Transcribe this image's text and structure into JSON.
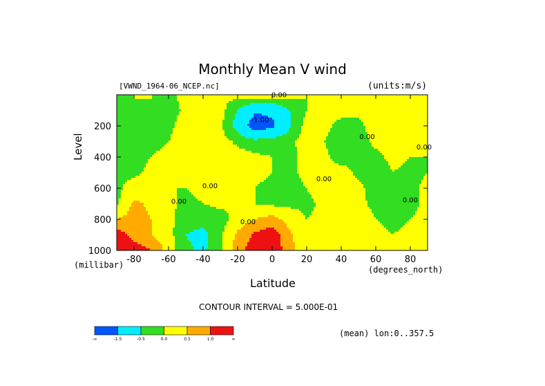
{
  "title": "Monthly Mean V wind",
  "file_label": "[VWND_1964-06_NCEP.nc]",
  "units_label": "(units:m/s)",
  "y_axis": {
    "label": "Level",
    "unit": "(millibar)",
    "ticks": [
      "200",
      "400",
      "600",
      "800",
      "1000"
    ]
  },
  "x_axis": {
    "label": "Latitude",
    "unit": "(degrees_north)",
    "ticks": [
      "-80",
      "-60",
      "-40",
      "-20",
      "0",
      "20",
      "40",
      "60",
      "80"
    ]
  },
  "contour_interval": "CONTOUR INTERVAL = 5.000E-01",
  "mean_label": "(mean) lon:0..357.5",
  "contour_labels": [
    "0.00",
    "-1.00",
    "0.00",
    "0.00",
    "0.00",
    "0.00",
    "0.00",
    "0.00",
    "0.00"
  ],
  "legend": {
    "colors": [
      "#0055ff",
      "#00eeff",
      "#33dd22",
      "#ffff00",
      "#ffaa00",
      "#ee1111"
    ],
    "labels": [
      "-∞",
      "-1.5",
      "-0.5",
      "0.0",
      "0.5",
      "1.0",
      "∞"
    ]
  },
  "chart_data": {
    "type": "heatmap",
    "title": "Monthly Mean V wind",
    "xlabel": "Latitude",
    "ylabel": "Level",
    "x_unit": "degrees_north",
    "y_unit": "millibar",
    "units": "m/s",
    "xlim": [
      -90,
      90
    ],
    "ylim": [
      1000,
      0
    ],
    "y_scale": "linear, inverted",
    "contour_interval": 0.5,
    "levels": [
      -1.5,
      -0.5,
      0.0,
      0.5,
      1.0
    ],
    "level_colors": [
      "#0055ff",
      "#00eeff",
      "#33dd22",
      "#ffff00",
      "#ffaa00",
      "#ee1111"
    ],
    "lat": [
      -90,
      -80,
      -70,
      -60,
      -50,
      -40,
      -30,
      -20,
      -10,
      0,
      10,
      20,
      30,
      40,
      50,
      60,
      70,
      80,
      90
    ],
    "lev": [
      25,
      100,
      200,
      300,
      400,
      500,
      600,
      700,
      800,
      900,
      1000
    ],
    "values": [
      [
        -0.1,
        0.0,
        0.0,
        -0.1,
        0.1,
        0.1,
        0.1,
        0.0,
        0.0,
        0.0,
        0.0,
        0.0,
        0.1,
        0.1,
        0.1,
        0.1,
        0.1,
        0.1,
        0.0
      ],
      [
        -0.2,
        -0.2,
        -0.3,
        -0.2,
        0.1,
        0.2,
        0.2,
        -0.5,
        -1.4,
        -1.3,
        -0.5,
        0.0,
        0.1,
        0.1,
        0.1,
        0.2,
        0.2,
        0.2,
        0.1
      ],
      [
        -0.3,
        -0.4,
        -0.3,
        -0.1,
        0.2,
        0.3,
        0.1,
        -0.8,
        -2.0,
        -1.7,
        -0.6,
        0.2,
        0.1,
        -0.1,
        -0.1,
        0.2,
        0.2,
        0.1,
        0.1
      ],
      [
        -0.2,
        -0.1,
        -0.1,
        0.0,
        0.2,
        0.2,
        0.2,
        -0.1,
        -0.3,
        -0.2,
        -0.1,
        0.2,
        0.0,
        -0.2,
        -0.2,
        0.1,
        0.1,
        0.1,
        0.1
      ],
      [
        -0.2,
        -0.1,
        0.0,
        0.1,
        0.1,
        0.2,
        0.2,
        0.2,
        0.1,
        0.0,
        -0.1,
        0.1,
        0.1,
        -0.2,
        -0.1,
        -0.1,
        0.1,
        0.0,
        0.0
      ],
      [
        -0.1,
        -0.1,
        0.1,
        0.0,
        0.1,
        0.1,
        0.2,
        0.1,
        0.1,
        0.0,
        -0.1,
        0.1,
        0.1,
        0.2,
        -0.1,
        -0.2,
        0.0,
        -0.1,
        0.0
      ],
      [
        -0.1,
        0.2,
        0.3,
        0.0,
        0.0,
        0.1,
        0.2,
        0.1,
        0.0,
        -0.1,
        -0.1,
        0.0,
        0.2,
        0.2,
        0.1,
        -0.2,
        -0.1,
        -0.1,
        0.1
      ],
      [
        -0.1,
        0.6,
        0.4,
        0.1,
        -0.1,
        0.0,
        0.1,
        0.0,
        0.0,
        -0.1,
        -0.1,
        -0.1,
        0.1,
        0.1,
        0.1,
        -0.1,
        -0.1,
        -0.1,
        0.1
      ],
      [
        0.5,
        0.7,
        0.5,
        0.1,
        -0.2,
        -0.3,
        -0.2,
        0.2,
        0.5,
        0.7,
        0.3,
        0.0,
        0.1,
        0.1,
        0.2,
        0.0,
        -0.1,
        0.0,
        0.1
      ],
      [
        1.3,
        0.8,
        0.5,
        0.2,
        -0.5,
        -0.7,
        -0.1,
        0.6,
        1.1,
        1.3,
        0.6,
        0.1,
        0.1,
        0.1,
        0.1,
        0.1,
        0.0,
        0.1,
        0.1
      ],
      [
        1.6,
        1.3,
        1.0,
        0.3,
        -0.4,
        -0.6,
        -0.1,
        0.8,
        1.3,
        1.4,
        0.7,
        0.1,
        0.2,
        0.1,
        0.0,
        0.1,
        0.1,
        0.1,
        0.1
      ]
    ],
    "legend": {
      "placement": "bottom-left",
      "labels": [
        "-∞",
        "-1.5",
        "-0.5",
        "0.0",
        "0.5",
        "1.0",
        "∞"
      ]
    }
  }
}
